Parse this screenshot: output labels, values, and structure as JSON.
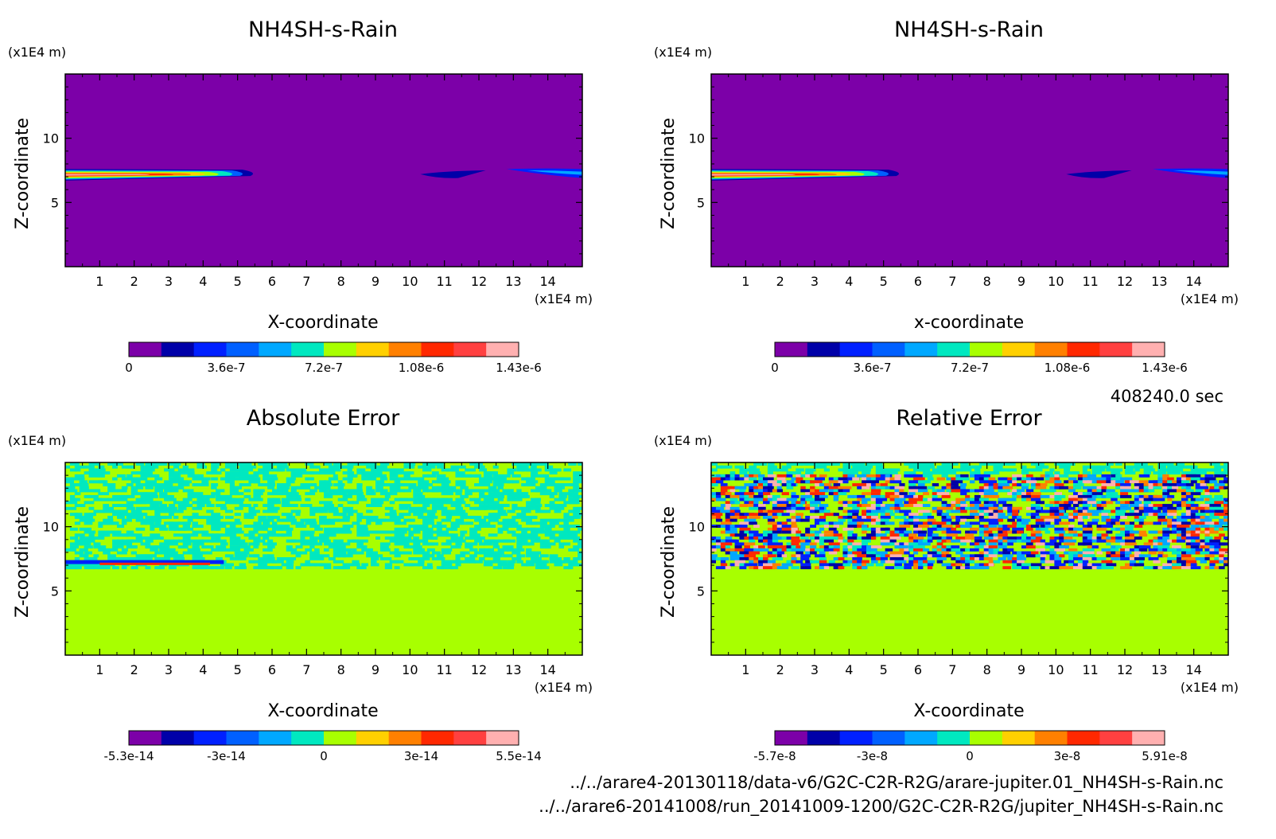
{
  "timestamp": "408240.0 sec",
  "file_paths": [
    "../../arare4-20130118/data-v6/G2C-C2R-R2G/arare-jupiter.01_NH4SH-s-Rain.nc",
    "../../arare6-20141008/run_20141009-1200/G2C-C2R-R2G/jupiter_NH4SH-s-Rain.nc"
  ],
  "colors": {
    "background": "#ffffff",
    "scale": [
      "#7c00a8",
      "#0000a8",
      "#0020ff",
      "#0060ff",
      "#00a8ff",
      "#00e8c0",
      "#a8ff00",
      "#ffd000",
      "#ff8000",
      "#ff2800",
      "#ff4040",
      "#ffb0b0"
    ]
  },
  "chart_data": [
    {
      "type": "heatmap",
      "title": "NH4SH-s-Rain",
      "xlabel": "X-coordinate",
      "ylabel": "Z-coordinate",
      "x_unit": "(x1E4 m)",
      "y_unit": "(x1E4 m)",
      "xlim": [
        0,
        15
      ],
      "ylim": [
        0,
        15
      ],
      "xticks": [
        "1",
        "2",
        "3",
        "4",
        "5",
        "6",
        "7",
        "8",
        "9",
        "10",
        "11",
        "12",
        "13",
        "14"
      ],
      "yticks": [
        "5",
        "10"
      ],
      "colorbar_labels": [
        "0",
        "3.6e-7",
        "7.2e-7",
        "1.08e-6",
        "1.43e-6"
      ],
      "pattern": "plume"
    },
    {
      "type": "heatmap",
      "title": "NH4SH-s-Rain",
      "xlabel": "x-coordinate",
      "ylabel": "Z-coordinate",
      "x_unit": "(x1E4 m)",
      "y_unit": "(x1E4 m)",
      "xlim": [
        0,
        15
      ],
      "ylim": [
        0,
        15
      ],
      "xticks": [
        "1",
        "2",
        "3",
        "4",
        "5",
        "6",
        "7",
        "8",
        "9",
        "10",
        "11",
        "12",
        "13",
        "14"
      ],
      "yticks": [
        "5",
        "10"
      ],
      "colorbar_labels": [
        "0",
        "3.6e-7",
        "7.2e-7",
        "1.08e-6",
        "1.43e-6"
      ],
      "pattern": "plume"
    },
    {
      "type": "heatmap",
      "title": "Absolute Error",
      "xlabel": "X-coordinate",
      "ylabel": "Z-coordinate",
      "x_unit": "(x1E4 m)",
      "y_unit": "(x1E4 m)",
      "xlim": [
        0,
        15
      ],
      "ylim": [
        0,
        15
      ],
      "xticks": [
        "1",
        "2",
        "3",
        "4",
        "5",
        "6",
        "7",
        "8",
        "9",
        "10",
        "11",
        "12",
        "13",
        "14"
      ],
      "yticks": [
        "5",
        "10"
      ],
      "colorbar_labels": [
        "-5.3e-14",
        "-3e-14",
        "0",
        "3e-14",
        "5.5e-14"
      ],
      "pattern": "noise_low"
    },
    {
      "type": "heatmap",
      "title": "Relative Error",
      "xlabel": "X-coordinate",
      "ylabel": "Z-coordinate",
      "x_unit": "(x1E4 m)",
      "y_unit": "(x1E4 m)",
      "xlim": [
        0,
        15
      ],
      "ylim": [
        0,
        15
      ],
      "xticks": [
        "1",
        "2",
        "3",
        "4",
        "5",
        "6",
        "7",
        "8",
        "9",
        "10",
        "11",
        "12",
        "13",
        "14"
      ],
      "yticks": [
        "5",
        "10"
      ],
      "colorbar_labels": [
        "-5.7e-8",
        "-3e-8",
        "0",
        "3e-8",
        "5.91e-8"
      ],
      "pattern": "noise_high"
    }
  ]
}
